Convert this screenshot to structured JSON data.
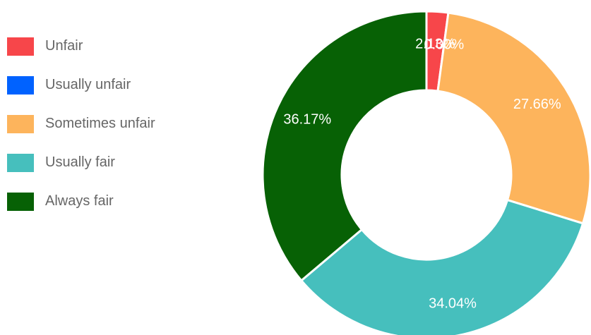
{
  "chart_data": {
    "type": "pie",
    "variant": "doughnut",
    "legend_position": "left",
    "categories": [
      "Unfair",
      "Usually unfair",
      "Sometimes unfair",
      "Usually fair",
      "Always fair"
    ],
    "values": [
      2.13,
      0,
      27.66,
      34.04,
      36.17
    ],
    "value_labels": [
      "2.13%",
      "0.00%",
      "27.66%",
      "34.04%",
      "36.17%"
    ],
    "colors": [
      "#f7464a",
      "#0062ff",
      "#fdb45c",
      "#46bfbd",
      "#076105"
    ]
  }
}
